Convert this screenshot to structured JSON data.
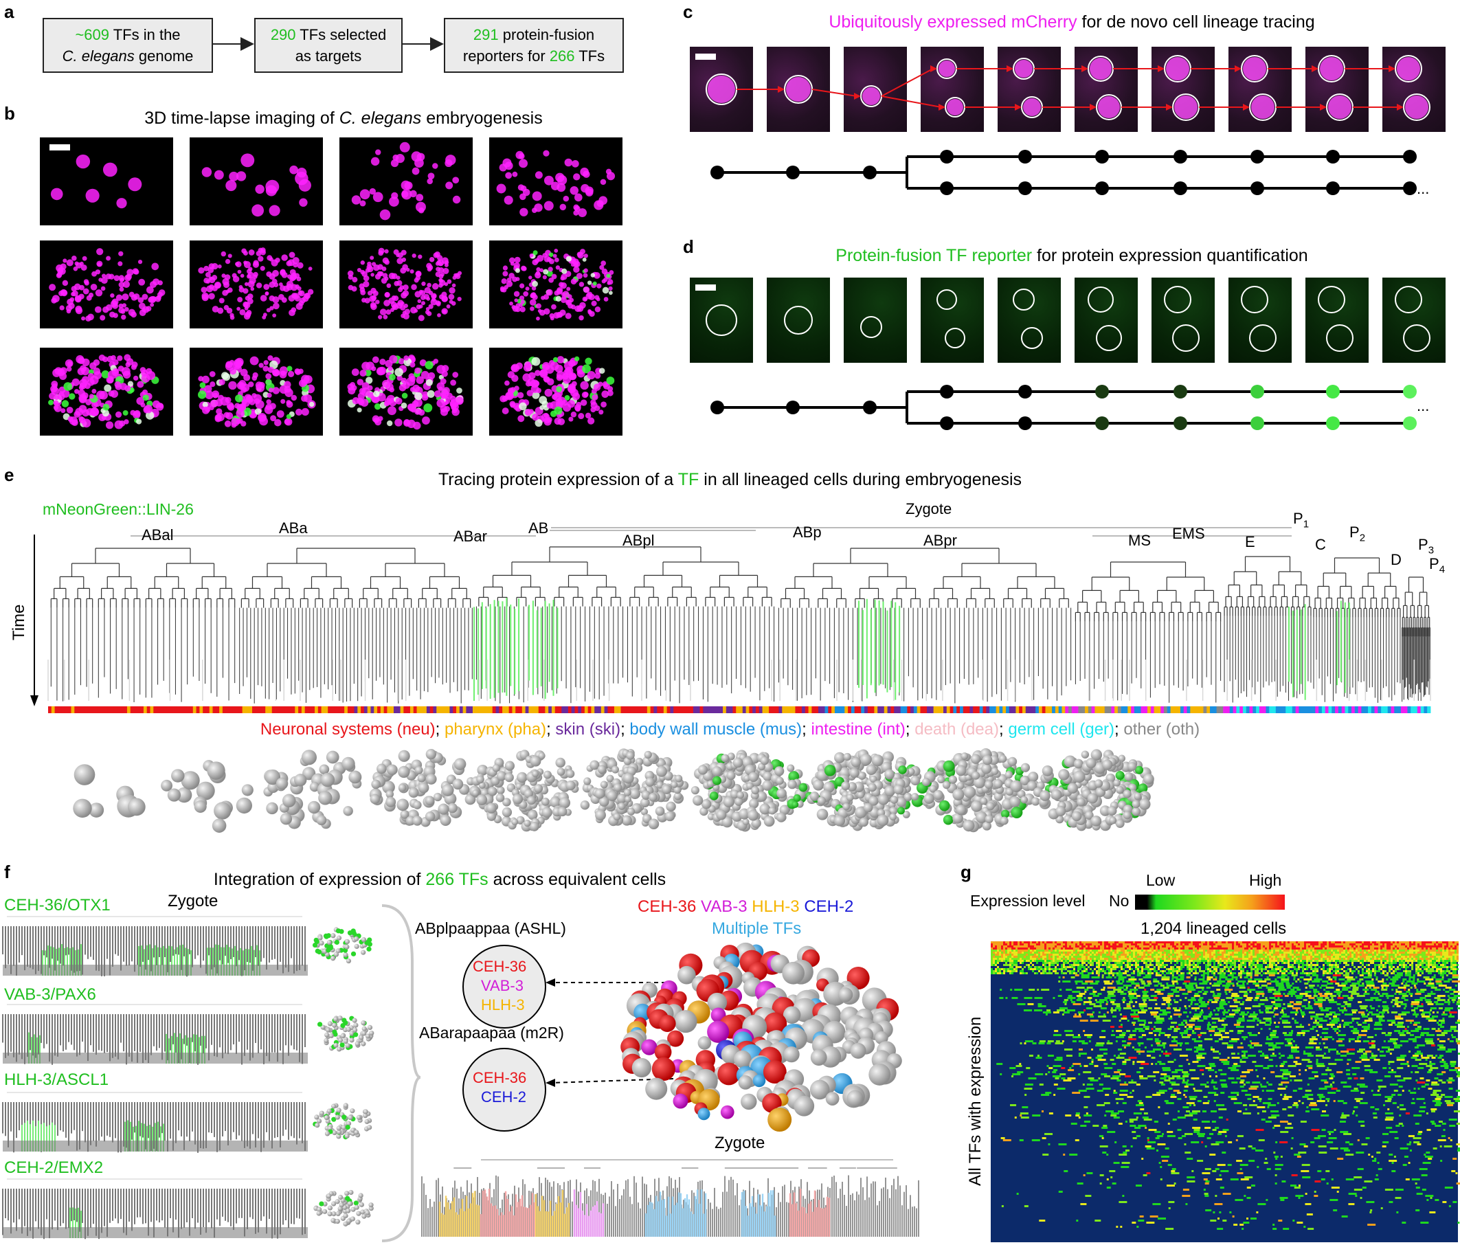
{
  "panel_a": {
    "label": "a",
    "box1": {
      "hl": "~609",
      "t1": " TFs in the",
      "t2_italic": "C. elegans",
      "t2": " genome"
    },
    "box2": {
      "hl": "290",
      "t1": " TFs selected",
      "t2": "as targets"
    },
    "box3": {
      "hl": "291",
      "t1": " protein-fusion",
      "t2a": "reporters for ",
      "hl2": "266",
      "t2b": " TFs"
    }
  },
  "panel_b": {
    "label": "b",
    "title_pre": "3D time-lapse imaging of ",
    "title_italic": "C. elegans",
    "title_post": " embryogenesis"
  },
  "panel_c": {
    "label": "c",
    "title_hl": "Ubiquitously expressed mCherry",
    "title_rest": " for de novo cell lineage tracing",
    "ellipsis": "..."
  },
  "panel_d": {
    "label": "d",
    "title_hl": "Protein-fusion TF reporter",
    "title_rest": " for protein expression quantification",
    "ellipsis": "..."
  },
  "panel_e": {
    "label": "e",
    "title_pre": "Tracing protein expression of a ",
    "title_hl": "TF",
    "title_post": " in all lineaged cells during embryogenesis",
    "reporter": "mNeonGreen::LIN-26",
    "axis": "Time",
    "nodes": {
      "zygote": "Zygote",
      "ab": "AB",
      "aba": "ABa",
      "abal": "ABal",
      "abar": "ABar",
      "abp": "ABp",
      "abpl": "ABpl",
      "abpr": "ABpr",
      "p1": "P",
      "p1sub": "1",
      "ems": "EMS",
      "ms": "MS",
      "e": "E",
      "p2": "P",
      "p2sub": "2",
      "c": "C",
      "p3": "P",
      "p3sub": "3",
      "d": "D",
      "p4": "P",
      "p4sub": "4"
    },
    "legend": [
      {
        "text": "Neuronal systems (neu)",
        "color": "#e8161b"
      },
      {
        "text": "; ",
        "color": "#000000"
      },
      {
        "text": "pharynx (pha)",
        "color": "#f5b400"
      },
      {
        "text": "; ",
        "color": "#000000"
      },
      {
        "text": "skin (ski)",
        "color": "#6a2a9c"
      },
      {
        "text": "; ",
        "color": "#000000"
      },
      {
        "text": "body wall muscle (mus)",
        "color": "#1a8fe0"
      },
      {
        "text": "; ",
        "color": "#000000"
      },
      {
        "text": "intestine (int)",
        "color": "#ee1ef0"
      },
      {
        "text": "; ",
        "color": "#000000"
      },
      {
        "text": "death (dea)",
        "color": "#f5bcc4"
      },
      {
        "text": "; ",
        "color": "#000000"
      },
      {
        "text": "germ cell (ger)",
        "color": "#1fe6ee"
      },
      {
        "text": "; ",
        "color": "#000000"
      },
      {
        "text": "other (oth)",
        "color": "#888888"
      }
    ]
  },
  "panel_f": {
    "label": "f",
    "title_pre": "Integration of expression of ",
    "title_hl": "266 TFs",
    "title_post": " across equivalent cells",
    "trees": [
      {
        "name": "CEH-36/OTX1",
        "zygote": "Zygote"
      },
      {
        "name": "VAB-3/PAX6"
      },
      {
        "name": "HLH-3/ASCL1"
      },
      {
        "name": "CEH-2/EMX2"
      }
    ],
    "cell1": {
      "name": "ABplpaappaa (ASHL)",
      "tfs": [
        "CEH-36",
        "VAB-3",
        "HLH-3"
      ]
    },
    "cell2": {
      "name": "ABarapaapaa (m2R)",
      "tfs": [
        "CEH-36",
        "CEH-2"
      ]
    },
    "legend": [
      {
        "text": "CEH-36",
        "color": "#e8161b"
      },
      {
        "text": "VAB-3",
        "color": "#d21ed8"
      },
      {
        "text": "HLH-3",
        "color": "#f5b400"
      },
      {
        "text": "CEH-2",
        "color": "#1a1ad8"
      }
    ],
    "legend2": {
      "text": "Multiple TFs",
      "color": "#35a8e0"
    },
    "bottom_zygote": "Zygote"
  },
  "panel_g": {
    "label": "g",
    "expr_label": "Expression level",
    "no": "No",
    "low": "Low",
    "high": "High",
    "xlabel": "1,204 lineaged cells",
    "ylabel": "All TFs with expression",
    "colors": {
      "none": "#000000",
      "low": "#1fd81f",
      "mid": "#e8e81b",
      "high": "#f5121b",
      "background": "#0c2a6a"
    }
  }
}
